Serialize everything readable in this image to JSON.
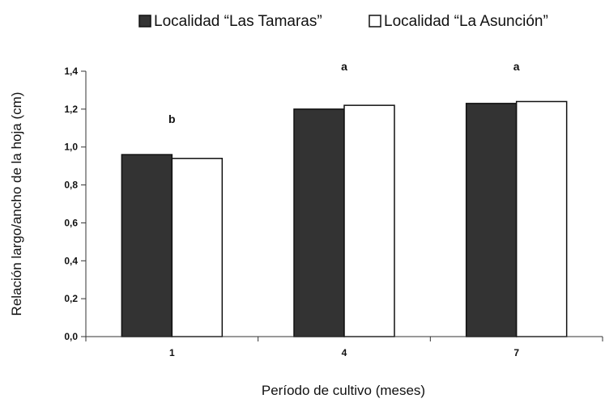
{
  "chart_data": {
    "type": "bar",
    "categories": [
      "1",
      "4",
      "7"
    ],
    "series": [
      {
        "name": "Localidad “Las Tamaras”",
        "values": [
          0.96,
          1.2,
          1.23
        ],
        "color": "#333333"
      },
      {
        "name": "Localidad “La Asunción”",
        "values": [
          0.94,
          1.22,
          1.24
        ],
        "color": "#ffffff"
      }
    ],
    "annotations": [
      "b",
      "a",
      "a"
    ],
    "xlabel": "Período de cultivo (meses)",
    "ylabel": "Relación largo/ancho de la hoja (cm)",
    "ylim": [
      0,
      1.4
    ],
    "yticks": [
      "0,0",
      "0,2",
      "0,4",
      "0,6",
      "0,8",
      "1,0",
      "1,2",
      "1,4"
    ],
    "legend_position": "top",
    "grid": false
  }
}
